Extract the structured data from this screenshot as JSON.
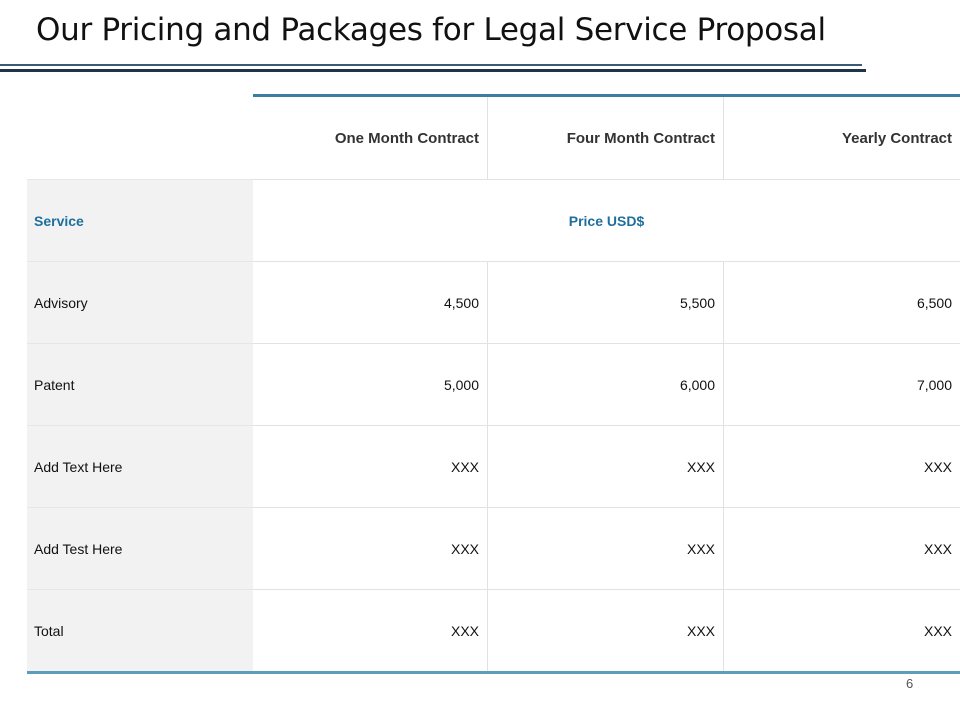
{
  "slide": {
    "title": "Our Pricing and Packages for Legal Service Proposal",
    "page_number": "6"
  },
  "table": {
    "columns": [
      "One Month Contract",
      "Four Month Contract",
      "Yearly Contract"
    ],
    "service_label": "Service",
    "price_label": "Price USD$",
    "rows": [
      {
        "label": "Advisory",
        "values": [
          "4,500",
          "5,500",
          "6,500"
        ]
      },
      {
        "label": "Patent",
        "values": [
          "5,000",
          "6,000",
          "7,000"
        ]
      },
      {
        "label": "Add Text Here",
        "values": [
          "XXX",
          "XXX",
          "XXX"
        ]
      },
      {
        "label": "Add Test Here",
        "values": [
          "XXX",
          "XXX",
          "XXX"
        ]
      },
      {
        "label": "Total",
        "values": [
          "XXX",
          "XXX",
          "XXX"
        ]
      }
    ]
  },
  "colors": {
    "accent": "#1f6f9e",
    "header_rule": "#3a7ea3",
    "label_column_bg": "#f2f2f2"
  }
}
